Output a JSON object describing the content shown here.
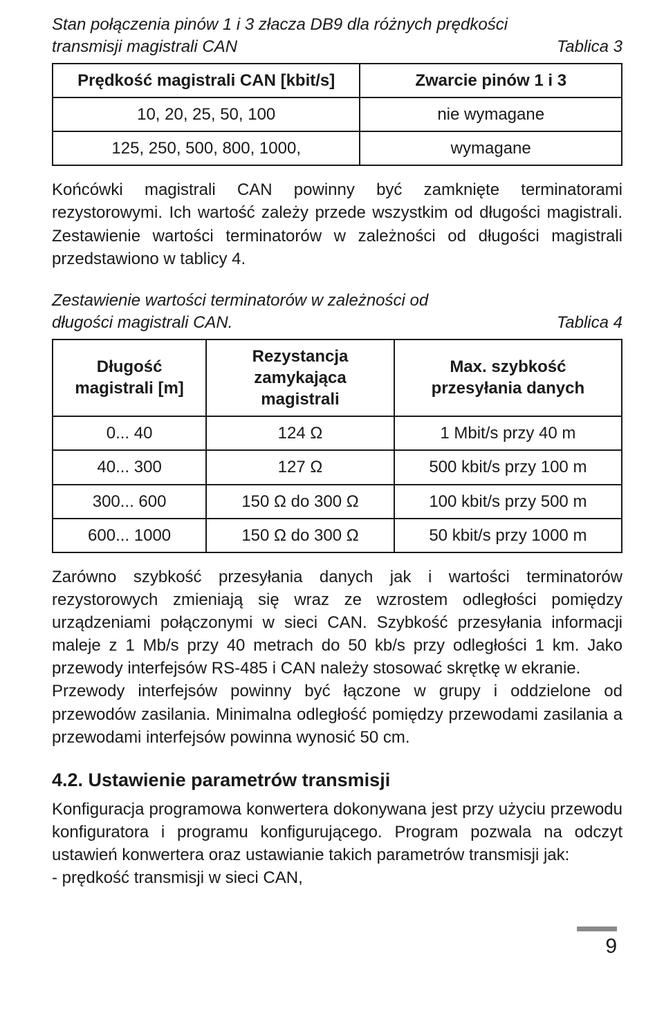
{
  "table3": {
    "caption_line1": "Stan połączenia pinów 1 i 3 złacza DB9 dla różnych prędkości",
    "caption_line2": "transmisji magistrali CAN",
    "table_label": "Tablica 3",
    "headers": [
      "Prędkość magistrali CAN [kbit/s]",
      "Zwarcie pinów 1 i 3"
    ],
    "col_widths": [
      "54%",
      "46%"
    ],
    "rows": [
      [
        "10, 20, 25, 50, 100",
        "nie wymagane"
      ],
      [
        "125, 250, 500, 800, 1000,",
        "wymagane"
      ]
    ]
  },
  "para1": "Końcówki magistrali CAN powinny być zamknięte terminatorami rezystorowymi. Ich wartość zależy przede wszystkim od długości magistrali. Zestawienie wartości terminatorów w zależności od długości magistrali przedstawiono w tablicy 4.",
  "table4": {
    "caption_line1": "Zestawienie wartości terminatorów w zależności od",
    "caption_line2": "długości magistrali CAN.",
    "table_label": "Tablica 4",
    "headers": [
      "Długość magistrali [m]",
      "Rezystancja zamykająca magistrali",
      "Max. szybkość przesyłania danych"
    ],
    "col_widths": [
      "27%",
      "33%",
      "40%"
    ],
    "rows": [
      [
        "0... 40",
        "124 Ω",
        "1 Mbit/s przy 40 m"
      ],
      [
        "40... 300",
        "127 Ω",
        "500 kbit/s przy 100 m"
      ],
      [
        "300... 600",
        "150 Ω do 300 Ω",
        "100 kbit/s przy 500 m"
      ],
      [
        "600... 1000",
        "150 Ω do 300 Ω",
        "50 kbit/s przy 1000 m"
      ]
    ]
  },
  "para2": "Zarówno szybkość przesyłania danych jak i wartości terminatorów rezystorowych zmieniają się wraz ze wzrostem odległości pomiędzy urządzeniami połączonymi w sieci CAN. Szybkość przesyłania informacji maleje z 1 Mb/s przy 40 metrach do 50 kb/s przy odległości 1 km. Jako przewody interfejsów RS-485 i CAN należy stosować skrętkę w ekranie.",
  "para3": "Przewody interfejsów powinny być łączone w grupy i oddzielone od przewodów zasilania. Minimalna odległość pomiędzy przewodami zasilania a przewodami interfejsów powinna wynosić 50 cm.",
  "heading": "4.2. Ustawienie parametrów transmisji",
  "para4": "Konfiguracja programowa konwertera dokonywana jest przy użyciu przewodu konfiguratora i programu konfigurującego. Program pozwala na odczyt ustawień konwertera oraz ustawianie takich parametrów transmisji jak:",
  "bullet1": "- prędkość transmisji w sieci CAN,",
  "page_number": "9"
}
